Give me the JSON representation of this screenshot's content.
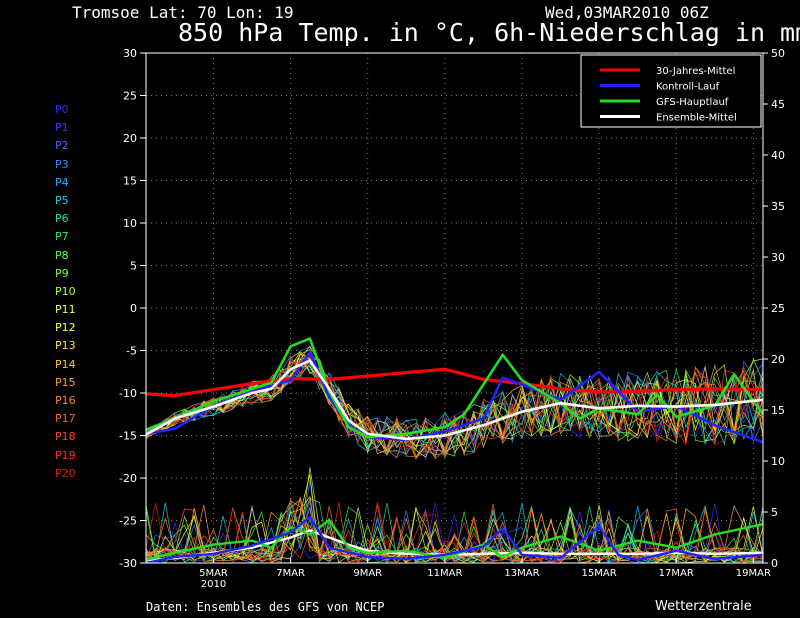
{
  "header": {
    "location": "Tromsoe  Lat: 70 Lon: 19",
    "run": "Wed,03MAR2010 06Z",
    "title": "850 hPa Temp. in °C, 6h-Niederschlag in mm"
  },
  "footer": {
    "credit": "Daten: Ensembles des GFS von NCEP",
    "brand": "Wetterzentrale"
  },
  "members": [
    {
      "label": "P0",
      "color": "#2a2aff"
    },
    {
      "label": "P1",
      "color": "#3a3aff"
    },
    {
      "label": "P2",
      "color": "#3c6cff"
    },
    {
      "label": "P3",
      "color": "#2f8fff"
    },
    {
      "label": "P4",
      "color": "#1fb0ff"
    },
    {
      "label": "P5",
      "color": "#20d0e0"
    },
    {
      "label": "P6",
      "color": "#20e0a0"
    },
    {
      "label": "P7",
      "color": "#30e860"
    },
    {
      "label": "P8",
      "color": "#50ff40"
    },
    {
      "label": "P9",
      "color": "#80ff30"
    },
    {
      "label": "P10",
      "color": "#b0ff30"
    },
    {
      "label": "P11",
      "color": "#e0ff40"
    },
    {
      "label": "P12",
      "color": "#ffff40"
    },
    {
      "label": "P13",
      "color": "#ffe040"
    },
    {
      "label": "P14",
      "color": "#ffc040"
    },
    {
      "label": "P15",
      "color": "#ffa030"
    },
    {
      "label": "P16",
      "color": "#ff8020"
    },
    {
      "label": "P17",
      "color": "#ff6020"
    },
    {
      "label": "P18",
      "color": "#ff4020"
    },
    {
      "label": "P19",
      "color": "#ff3010"
    },
    {
      "label": "P20",
      "color": "#d82010"
    }
  ],
  "chart_data": {
    "type": "line",
    "title": "850 hPa Temp. in °C, 6h-Niederschlag in mm",
    "xlabel": "",
    "ylabel_left": "",
    "ylabel_right": "",
    "x_axis": {
      "start": "2010-03-03 06Z",
      "end": "2010-03-19 06Z",
      "tick_labels": [
        "5MAR",
        "7MAR",
        "9MAR",
        "11MAR",
        "13MAR",
        "15MAR",
        "17MAR",
        "19MAR"
      ],
      "tick_dates": [
        "2010-03-05",
        "2010-03-07",
        "2010-03-09",
        "2010-03-11",
        "2010-03-13",
        "2010-03-15",
        "2010-03-17",
        "2010-03-19"
      ],
      "year_label": "2010"
    },
    "y_left": {
      "lim": [
        -30,
        30
      ],
      "ticks": [
        -30,
        -25,
        -20,
        -15,
        -10,
        -5,
        0,
        5,
        10,
        15,
        20,
        25,
        30
      ],
      "unit": "°C"
    },
    "y_right": {
      "lim": [
        0,
        50
      ],
      "ticks": [
        0,
        5,
        10,
        15,
        20,
        25,
        30,
        35,
        40,
        45,
        50
      ],
      "unit": "mm"
    },
    "grid": true,
    "legend": {
      "position": "top-right"
    },
    "series": [
      {
        "name": "30-Jahres-Mittel",
        "color": "#ff0000",
        "axis": "left",
        "points": [
          [
            "2010-03-03 06Z",
            -10.1
          ],
          [
            "2010-03-04 00Z",
            -10.3
          ],
          [
            "2010-03-05 00Z",
            -9.6
          ],
          [
            "2010-03-06 00Z",
            -8.9
          ],
          [
            "2010-03-07 00Z",
            -8.3
          ],
          [
            "2010-03-08 00Z",
            -8.4
          ],
          [
            "2010-03-09 00Z",
            -8.0
          ],
          [
            "2010-03-10 00Z",
            -7.6
          ],
          [
            "2010-03-11 00Z",
            -7.2
          ],
          [
            "2010-03-12 00Z",
            -8.4
          ],
          [
            "2010-03-13 00Z",
            -8.9
          ],
          [
            "2010-03-14 00Z",
            -9.5
          ],
          [
            "2010-03-15 00Z",
            -9.9
          ],
          [
            "2010-03-16 00Z",
            -9.8
          ],
          [
            "2010-03-17 00Z",
            -9.6
          ],
          [
            "2010-03-18 00Z",
            -9.5
          ],
          [
            "2010-03-19 06Z",
            -9.6
          ]
        ]
      },
      {
        "name": "Kontroll-Lauf",
        "color": "#2222ff",
        "axis": "left",
        "points": [
          [
            "2010-03-03 06Z",
            -14.8
          ],
          [
            "2010-03-04 00Z",
            -14.2
          ],
          [
            "2010-03-05 00Z",
            -11.5
          ],
          [
            "2010-03-06 00Z",
            -9.8
          ],
          [
            "2010-03-07 00Z",
            -8.5
          ],
          [
            "2010-03-07 12Z",
            -5.2
          ],
          [
            "2010-03-08 00Z",
            -10.5
          ],
          [
            "2010-03-08 12Z",
            -13.8
          ],
          [
            "2010-03-09 00Z",
            -15.2
          ],
          [
            "2010-03-10 00Z",
            -15.5
          ],
          [
            "2010-03-11 00Z",
            -14.5
          ],
          [
            "2010-03-12 00Z",
            -13.0
          ],
          [
            "2010-03-12 12Z",
            -8.2
          ],
          [
            "2010-03-13 00Z",
            -9.0
          ],
          [
            "2010-03-14 00Z",
            -10.8
          ],
          [
            "2010-03-15 00Z",
            -7.5
          ],
          [
            "2010-03-15 12Z",
            -9.8
          ],
          [
            "2010-03-16 00Z",
            -12.2
          ],
          [
            "2010-03-17 00Z",
            -11.5
          ],
          [
            "2010-03-18 00Z",
            -13.8
          ],
          [
            "2010-03-19 06Z",
            -15.8
          ]
        ]
      },
      {
        "name": "GFS-Hauptlauf",
        "color": "#22dd22",
        "axis": "left",
        "points": [
          [
            "2010-03-03 06Z",
            -14.3
          ],
          [
            "2010-03-04 00Z",
            -13.0
          ],
          [
            "2010-03-05 00Z",
            -11.0
          ],
          [
            "2010-03-06 00Z",
            -9.5
          ],
          [
            "2010-03-06 12Z",
            -8.8
          ],
          [
            "2010-03-07 00Z",
            -4.5
          ],
          [
            "2010-03-07 12Z",
            -3.6
          ],
          [
            "2010-03-08 00Z",
            -9.8
          ],
          [
            "2010-03-08 12Z",
            -14.0
          ],
          [
            "2010-03-09 00Z",
            -15.2
          ],
          [
            "2010-03-10 00Z",
            -14.8
          ],
          [
            "2010-03-11 00Z",
            -14.0
          ],
          [
            "2010-03-11 12Z",
            -12.5
          ],
          [
            "2010-03-12 00Z",
            -9.0
          ],
          [
            "2010-03-12 12Z",
            -5.5
          ],
          [
            "2010-03-13 00Z",
            -8.5
          ],
          [
            "2010-03-14 00Z",
            -11.2
          ],
          [
            "2010-03-14 12Z",
            -13.0
          ],
          [
            "2010-03-15 00Z",
            -11.8
          ],
          [
            "2010-03-16 00Z",
            -12.5
          ],
          [
            "2010-03-16 12Z",
            -10.2
          ],
          [
            "2010-03-17 00Z",
            -12.8
          ],
          [
            "2010-03-18 00Z",
            -11.5
          ],
          [
            "2010-03-18 12Z",
            -7.8
          ],
          [
            "2010-03-19 06Z",
            -12.5
          ]
        ]
      },
      {
        "name": "Ensemble-Mittel",
        "color": "#ffffff",
        "axis": "left",
        "points": [
          [
            "2010-03-03 06Z",
            -14.9
          ],
          [
            "2010-03-04 00Z",
            -13.0
          ],
          [
            "2010-03-05 00Z",
            -11.6
          ],
          [
            "2010-03-06 00Z",
            -10.0
          ],
          [
            "2010-03-06 12Z",
            -9.5
          ],
          [
            "2010-03-07 00Z",
            -7.2
          ],
          [
            "2010-03-07 12Z",
            -6.2
          ],
          [
            "2010-03-08 00Z",
            -9.5
          ],
          [
            "2010-03-08 12Z",
            -13.2
          ],
          [
            "2010-03-09 00Z",
            -14.8
          ],
          [
            "2010-03-10 00Z",
            -15.4
          ],
          [
            "2010-03-11 00Z",
            -15.0
          ],
          [
            "2010-03-12 00Z",
            -13.8
          ],
          [
            "2010-03-13 00Z",
            -12.2
          ],
          [
            "2010-03-14 00Z",
            -11.2
          ],
          [
            "2010-03-15 00Z",
            -11.8
          ],
          [
            "2010-03-16 00Z",
            -11.5
          ],
          [
            "2010-03-17 00Z",
            -11.6
          ],
          [
            "2010-03-18 00Z",
            -11.4
          ],
          [
            "2010-03-19 06Z",
            -10.8
          ]
        ]
      },
      {
        "name": "",
        "color": "#ffffff",
        "axis": "right",
        "points": [
          [
            "2010-03-03 06Z",
            0.2
          ],
          [
            "2010-03-04 00Z",
            0.5
          ],
          [
            "2010-03-05 00Z",
            1.0
          ],
          [
            "2010-03-06 00Z",
            1.5
          ],
          [
            "2010-03-07 00Z",
            2.5
          ],
          [
            "2010-03-07 12Z",
            3.2
          ],
          [
            "2010-03-08 00Z",
            2.5
          ],
          [
            "2010-03-08 12Z",
            1.8
          ],
          [
            "2010-03-09 00Z",
            1.2
          ],
          [
            "2010-03-10 00Z",
            0.9
          ],
          [
            "2010-03-11 00Z",
            0.8
          ],
          [
            "2010-03-12 00Z",
            0.9
          ],
          [
            "2010-03-13 00Z",
            1.0
          ],
          [
            "2010-03-14 00Z",
            0.9
          ],
          [
            "2010-03-15 00Z",
            0.9
          ],
          [
            "2010-03-16 00Z",
            0.9
          ],
          [
            "2010-03-17 00Z",
            1.0
          ],
          [
            "2010-03-18 00Z",
            0.9
          ],
          [
            "2010-03-19 06Z",
            1.0
          ]
        ]
      },
      {
        "name": "",
        "color": "#22dd22",
        "axis": "right",
        "points": [
          [
            "2010-03-03 06Z",
            0.3
          ],
          [
            "2010-03-04 00Z",
            1.0
          ],
          [
            "2010-03-05 00Z",
            1.8
          ],
          [
            "2010-03-06 00Z",
            2.2
          ],
          [
            "2010-03-06 12Z",
            1.5
          ],
          [
            "2010-03-07 00Z",
            3.5
          ],
          [
            "2010-03-07 12Z",
            2.8
          ],
          [
            "2010-03-08 00Z",
            4.2
          ],
          [
            "2010-03-08 12Z",
            1.5
          ],
          [
            "2010-03-09 00Z",
            1.0
          ],
          [
            "2010-03-10 00Z",
            1.2
          ],
          [
            "2010-03-11 00Z",
            0.5
          ],
          [
            "2010-03-12 00Z",
            1.8
          ],
          [
            "2010-03-12 12Z",
            0.6
          ],
          [
            "2010-03-13 00Z",
            1.5
          ],
          [
            "2010-03-14 00Z",
            2.6
          ],
          [
            "2010-03-15 00Z",
            1.2
          ],
          [
            "2010-03-16 00Z",
            2.2
          ],
          [
            "2010-03-17 00Z",
            1.5
          ],
          [
            "2010-03-18 00Z",
            2.8
          ],
          [
            "2010-03-19 06Z",
            3.8
          ]
        ]
      },
      {
        "name": "",
        "color": "#2222ff",
        "axis": "right",
        "points": [
          [
            "2010-03-03 06Z",
            0.0
          ],
          [
            "2010-03-04 00Z",
            0.6
          ],
          [
            "2010-03-05 00Z",
            0.9
          ],
          [
            "2010-03-06 00Z",
            1.7
          ],
          [
            "2010-03-07 00Z",
            3.0
          ],
          [
            "2010-03-07 12Z",
            4.5
          ],
          [
            "2010-03-08 00Z",
            1.5
          ],
          [
            "2010-03-09 00Z",
            0.6
          ],
          [
            "2010-03-10 00Z",
            0.4
          ],
          [
            "2010-03-11 00Z",
            0.8
          ],
          [
            "2010-03-12 00Z",
            1.6
          ],
          [
            "2010-03-12 12Z",
            3.4
          ],
          [
            "2010-03-13 00Z",
            0.8
          ],
          [
            "2010-03-14 00Z",
            0.5
          ],
          [
            "2010-03-15 00Z",
            3.6
          ],
          [
            "2010-03-15 12Z",
            0.8
          ],
          [
            "2010-03-16 00Z",
            0.3
          ],
          [
            "2010-03-17 00Z",
            1.2
          ],
          [
            "2010-03-18 00Z",
            0.4
          ],
          [
            "2010-03-19 06Z",
            0.8
          ]
        ]
      }
    ]
  }
}
